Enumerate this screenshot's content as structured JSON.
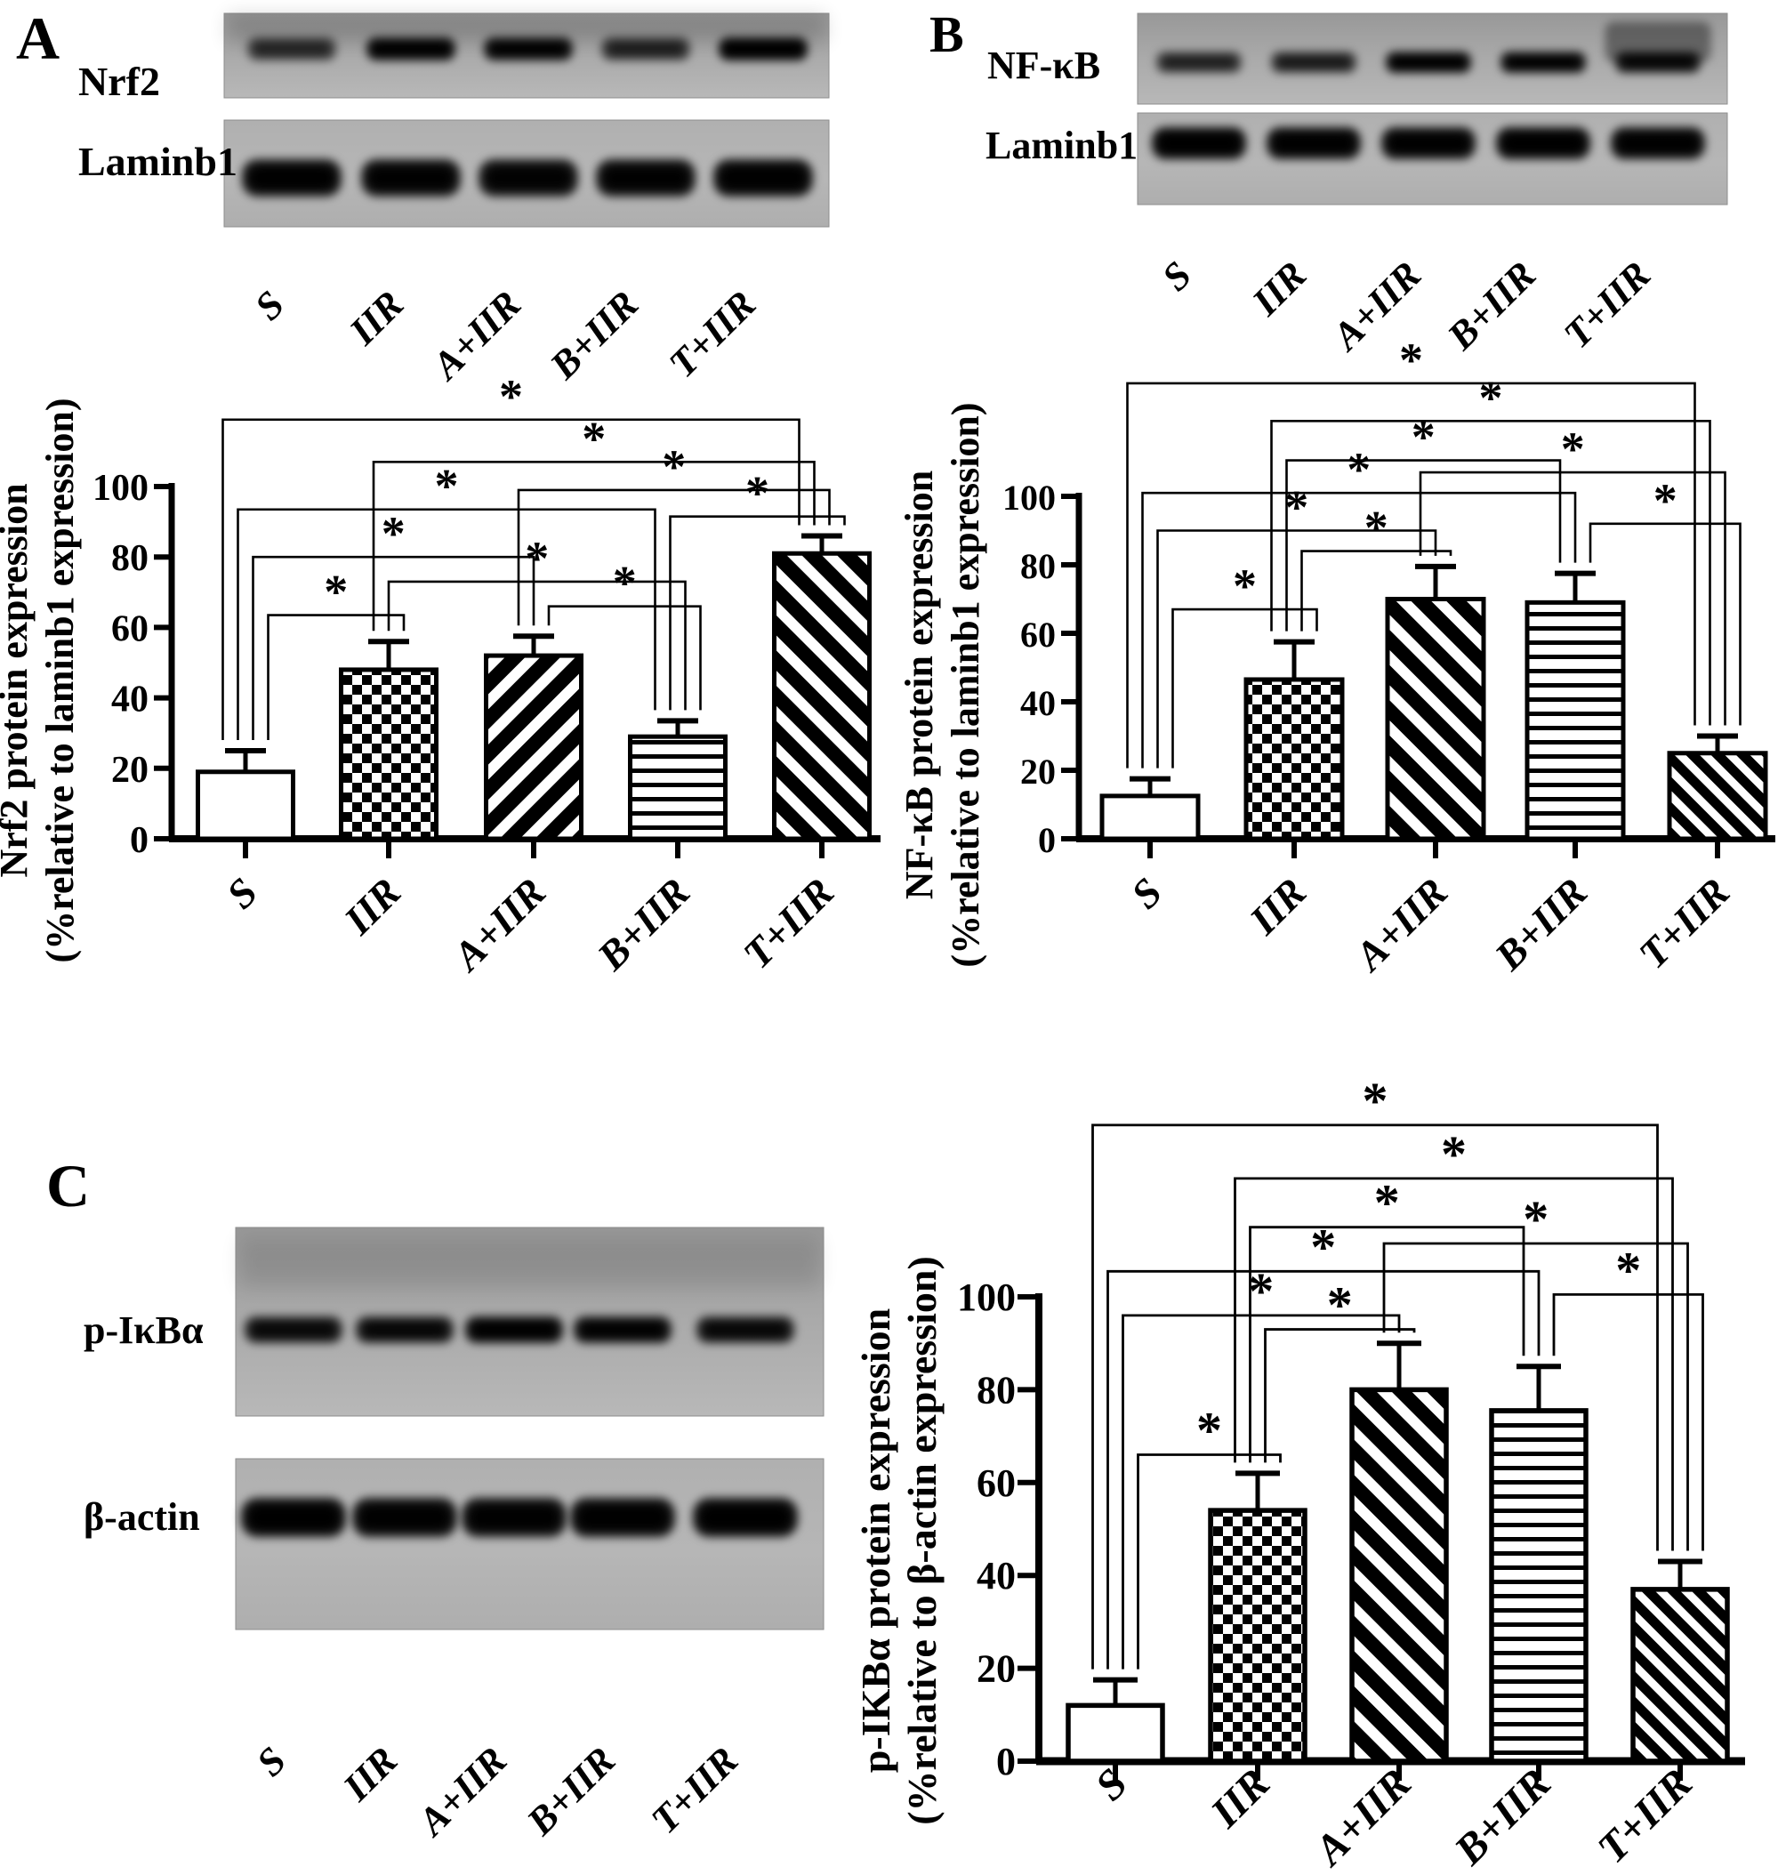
{
  "figure": {
    "panels": [
      {
        "label": "A",
        "blot": {
          "rows": [
            {
              "protein": "Nrf2",
              "band_intensities": [
                0.5,
                0.95,
                0.9,
                0.55,
                1.0
              ]
            },
            {
              "protein": "Laminb1",
              "band_intensities": [
                0.95,
                0.93,
                0.9,
                0.93,
                0.96
              ]
            }
          ],
          "lanes": [
            "S",
            "IIR",
            "A+IIR",
            "B+IIR",
            "T+IIR"
          ]
        }
      },
      {
        "label": "B",
        "blot": {
          "rows": [
            {
              "protein": "NF-κB",
              "band_intensities": [
                0.55,
                0.6,
                0.95,
                0.92,
                0.8
              ]
            },
            {
              "protein": "Laminb1",
              "band_intensities": [
                0.98,
                0.96,
                0.95,
                0.97,
                0.96
              ]
            }
          ],
          "lanes": [
            "S",
            "IIR",
            "A+IIR",
            "B+IIR",
            "T+IIR"
          ]
        }
      },
      {
        "label": "C",
        "blot": {
          "rows": [
            {
              "protein": "p-IκBα",
              "band_intensities": [
                0.78,
                0.82,
                0.95,
                0.9,
                0.8
              ]
            },
            {
              "protein": "β-actin",
              "band_intensities": [
                0.97,
                0.95,
                0.94,
                0.96,
                0.97
              ]
            }
          ],
          "lanes": [
            "S",
            "IIR",
            "A+IIR",
            "B+IIR",
            "T+IIR"
          ]
        }
      }
    ]
  },
  "chart_data": [
    {
      "panel": "A",
      "type": "bar",
      "categories": [
        "S",
        "IIR",
        "A+IIR",
        "B+IIR",
        "T+IIR"
      ],
      "values": [
        19,
        48,
        52,
        29,
        81
      ],
      "errors": [
        6,
        8,
        5.5,
        4.5,
        5
      ],
      "ylabel_line1": "Nrf2 protein expression",
      "ylabel_line2": "(%relative to laminb1 expression)",
      "ylim": [
        0,
        100
      ],
      "yticks": [
        "0",
        "20",
        "40",
        "60",
        "80",
        "100"
      ],
      "grid": false,
      "sig_symbol": "*",
      "bar_patterns": [
        "solid",
        "checker",
        "diag-up-thick",
        "hlines",
        "diag-down-thick"
      ],
      "significance": [
        {
          "a": "S",
          "b": "T+IIR",
          "level": 119
        },
        {
          "a": "IIR",
          "b": "T+IIR",
          "level": 107
        },
        {
          "a": "A+IIR",
          "b": "T+IIR",
          "level": 99
        },
        {
          "a": "S",
          "b": "B+IIR",
          "level": 93.5
        },
        {
          "a": "B+IIR",
          "b": "T+IIR",
          "level": 91.5
        },
        {
          "a": "S",
          "b": "A+IIR",
          "level": 80
        },
        {
          "a": "IIR",
          "b": "B+IIR",
          "level": 73
        },
        {
          "a": "A+IIR",
          "b": "B+IIR",
          "level": 66
        },
        {
          "a": "S",
          "b": "IIR",
          "level": 63.5
        }
      ]
    },
    {
      "panel": "B",
      "type": "bar",
      "categories": [
        "S",
        "IIR",
        "A+IIR",
        "B+IIR",
        "T+IIR"
      ],
      "values": [
        12.5,
        46.5,
        70,
        69,
        25
      ],
      "errors": [
        5,
        11,
        9.5,
        8.5,
        5
      ],
      "ylabel_line1": "NF-κB protein expression",
      "ylabel_line2": "(%relative to laminb1 expression)",
      "ylim": [
        0,
        100
      ],
      "yticks": [
        "0",
        "20",
        "40",
        "60",
        "80",
        "100"
      ],
      "grid": false,
      "sig_symbol": "*",
      "bar_patterns": [
        "solid",
        "checker",
        "diag-down-thick",
        "hlines",
        "diag-down-thin"
      ],
      "significance": [
        {
          "a": "S",
          "b": "T+IIR",
          "level": 133
        },
        {
          "a": "IIR",
          "b": "T+IIR",
          "level": 122
        },
        {
          "a": "IIR",
          "b": "B+IIR",
          "level": 110.5
        },
        {
          "a": "A+IIR",
          "b": "T+IIR",
          "level": 107
        },
        {
          "a": "S",
          "b": "B+IIR",
          "level": 101
        },
        {
          "a": "B+IIR",
          "b": "T+IIR",
          "level": 92
        },
        {
          "a": "S",
          "b": "A+IIR",
          "level": 90
        },
        {
          "a": "IIR",
          "b": "A+IIR",
          "level": 84
        },
        {
          "a": "S",
          "b": "IIR",
          "level": 67
        }
      ]
    },
    {
      "panel": "C",
      "type": "bar",
      "categories": [
        "S",
        "IIR",
        "A+IIR",
        "B+IIR",
        "T+IIR"
      ],
      "values": [
        12,
        54,
        80,
        75.5,
        37
      ],
      "errors": [
        5.5,
        8,
        10,
        9.5,
        6
      ],
      "ylabel_line1": "p-IKBα protein expression",
      "ylabel_line2": "(%relative to β-actin expression)",
      "ylim": [
        0,
        100
      ],
      "yticks": [
        "0",
        "20",
        "40",
        "60",
        "80",
        "100"
      ],
      "grid": false,
      "sig_symbol": "*",
      "bar_patterns": [
        "solid",
        "checker",
        "diag-down-thick",
        "hlines",
        "diag-down-thin"
      ],
      "significance": [
        {
          "a": "S",
          "b": "T+IIR",
          "level": 137
        },
        {
          "a": "IIR",
          "b": "T+IIR",
          "level": 125.5
        },
        {
          "a": "IIR",
          "b": "B+IIR",
          "level": 115
        },
        {
          "a": "A+IIR",
          "b": "T+IIR",
          "level": 111.5
        },
        {
          "a": "S",
          "b": "B+IIR",
          "level": 105.5
        },
        {
          "a": "B+IIR",
          "b": "T+IIR",
          "level": 100.5
        },
        {
          "a": "S",
          "b": "A+IIR",
          "level": 96
        },
        {
          "a": "IIR",
          "b": "A+IIR",
          "level": 93
        },
        {
          "a": "S",
          "b": "IIR",
          "level": 66
        }
      ]
    }
  ]
}
